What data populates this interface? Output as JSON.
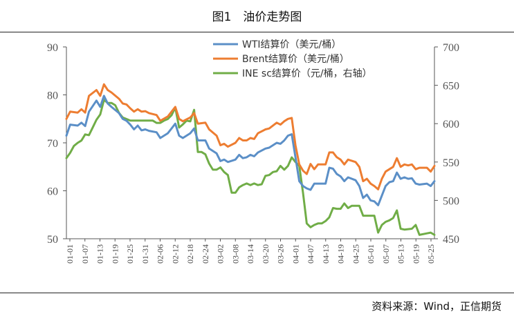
{
  "header": {
    "title": "图1　油价走势图"
  },
  "footer": {
    "source": "资料来源：Wind，正信期货"
  },
  "chart_data": {
    "type": "line",
    "title": "图1　油价走势图",
    "grid": false,
    "legend_position": "top-right",
    "colors": {
      "wti": "#5b8fc7",
      "brent": "#ed7d31",
      "ine": "#70ad47"
    },
    "y_left": {
      "min": 50,
      "max": 90,
      "ticks": [
        50,
        60,
        70,
        80,
        90
      ]
    },
    "y_right": {
      "min": 450,
      "max": 700,
      "ticks": [
        450,
        500,
        550,
        600,
        650,
        700
      ]
    },
    "x_tick_labels": [
      "01-01",
      "01-07",
      "01-13",
      "01-19",
      "01-25",
      "01-31",
      "02-06",
      "02-12",
      "02-18",
      "02-24",
      "03-02",
      "03-08",
      "03-14",
      "03-20",
      "03-26",
      "04-01",
      "04-07",
      "04-13",
      "04-19",
      "04-25",
      "05-01",
      "05-07",
      "05-13",
      "05-19",
      "05-25"
    ],
    "series": [
      {
        "name": "WTI结算价（美元/桶）",
        "axis": "left",
        "color": "#5b8fc7",
        "points": [
          [
            0,
            71.5
          ],
          [
            1,
            73.8
          ],
          [
            3,
            73.6
          ],
          [
            4,
            74.2
          ],
          [
            5,
            73.5
          ],
          [
            6,
            76.5
          ],
          [
            8,
            78.8
          ],
          [
            9,
            77.5
          ],
          [
            10,
            79.8
          ],
          [
            11,
            78.2
          ],
          [
            12,
            77.5
          ],
          [
            14,
            76.2
          ],
          [
            15,
            75.0
          ],
          [
            16,
            74.6
          ],
          [
            17,
            73.8
          ],
          [
            18,
            72.8
          ],
          [
            19,
            73.6
          ],
          [
            20,
            72.6
          ],
          [
            21,
            72.8
          ],
          [
            22,
            72.5
          ],
          [
            24,
            72.2
          ],
          [
            25,
            71.0
          ],
          [
            27,
            72.0
          ],
          [
            28,
            73.0
          ],
          [
            29,
            74.0
          ],
          [
            30,
            71.5
          ],
          [
            31,
            71.0
          ],
          [
            33,
            72.0
          ],
          [
            34,
            73.0
          ],
          [
            35,
            70.5
          ],
          [
            37,
            70.5
          ],
          [
            38,
            68.8
          ],
          [
            40,
            67.8
          ],
          [
            41,
            66.2
          ],
          [
            42,
            66.5
          ],
          [
            43,
            66.0
          ],
          [
            45,
            66.5
          ],
          [
            46,
            67.5
          ],
          [
            47,
            66.8
          ],
          [
            48,
            67.0
          ],
          [
            49,
            67.5
          ],
          [
            50,
            67.2
          ],
          [
            51,
            68.0
          ],
          [
            53,
            68.8
          ],
          [
            54,
            69.0
          ],
          [
            56,
            70.0
          ],
          [
            57,
            69.8
          ],
          [
            58,
            70.5
          ],
          [
            59,
            71.5
          ],
          [
            60,
            71.8
          ],
          [
            61,
            67.0
          ],
          [
            62,
            62.0
          ],
          [
            63,
            61.0
          ],
          [
            64,
            60.5
          ],
          [
            65,
            60.2
          ],
          [
            66,
            61.5
          ],
          [
            69,
            61.5
          ],
          [
            70,
            64.8
          ],
          [
            71,
            64.6
          ],
          [
            72,
            63.5
          ],
          [
            73,
            63.0
          ],
          [
            74,
            62.0
          ],
          [
            75,
            62.8
          ],
          [
            77,
            62.2
          ],
          [
            78,
            61.0
          ],
          [
            79,
            58.5
          ],
          [
            80,
            59.2
          ],
          [
            81,
            58.0
          ],
          [
            82,
            57.8
          ],
          [
            83,
            57.0
          ],
          [
            84,
            59.0
          ],
          [
            85,
            61.0
          ],
          [
            86,
            61.8
          ],
          [
            87,
            62.0
          ],
          [
            88,
            63.8
          ],
          [
            89,
            62.5
          ],
          [
            90,
            62.8
          ],
          [
            91,
            62.5
          ],
          [
            92,
            62.6
          ],
          [
            93,
            61.5
          ],
          [
            94,
            61.3
          ],
          [
            96,
            61.5
          ],
          [
            97,
            61.0
          ],
          [
            98,
            62.0
          ]
        ]
      },
      {
        "name": "Brent结算价（美元/桶）",
        "axis": "left",
        "color": "#ed7d31",
        "points": [
          [
            0,
            75.0
          ],
          [
            1,
            76.5
          ],
          [
            3,
            76.3
          ],
          [
            4,
            77.0
          ],
          [
            5,
            76.3
          ],
          [
            6,
            79.8
          ],
          [
            8,
            81.0
          ],
          [
            9,
            79.8
          ],
          [
            10,
            82.2
          ],
          [
            11,
            81.0
          ],
          [
            12,
            80.5
          ],
          [
            14,
            79.2
          ],
          [
            15,
            78.2
          ],
          [
            16,
            78.0
          ],
          [
            17,
            77.2
          ],
          [
            18,
            76.5
          ],
          [
            19,
            77.0
          ],
          [
            20,
            76.5
          ],
          [
            21,
            76.6
          ],
          [
            22,
            76.2
          ],
          [
            24,
            75.8
          ],
          [
            25,
            74.6
          ],
          [
            27,
            75.5
          ],
          [
            28,
            76.5
          ],
          [
            29,
            77.5
          ],
          [
            30,
            75.0
          ],
          [
            31,
            74.5
          ],
          [
            33,
            75.3
          ],
          [
            34,
            76.2
          ],
          [
            35,
            74.0
          ],
          [
            37,
            74.2
          ],
          [
            38,
            72.8
          ],
          [
            40,
            71.5
          ],
          [
            41,
            69.5
          ],
          [
            42,
            69.8
          ],
          [
            43,
            69.2
          ],
          [
            45,
            70.0
          ],
          [
            46,
            71.0
          ],
          [
            47,
            70.5
          ],
          [
            48,
            70.5
          ],
          [
            49,
            71.0
          ],
          [
            50,
            70.8
          ],
          [
            51,
            72.0
          ],
          [
            53,
            72.8
          ],
          [
            54,
            73.0
          ],
          [
            56,
            74.2
          ],
          [
            57,
            73.8
          ],
          [
            58,
            74.5
          ],
          [
            59,
            75.0
          ],
          [
            60,
            75.2
          ],
          [
            61,
            69.5
          ],
          [
            62,
            65.5
          ],
          [
            63,
            64.2
          ],
          [
            64,
            63.5
          ],
          [
            65,
            65.6
          ],
          [
            66,
            64.5
          ],
          [
            67,
            65.5
          ],
          [
            69,
            65.5
          ],
          [
            70,
            68.0
          ],
          [
            71,
            68.0
          ],
          [
            72,
            67.0
          ],
          [
            73,
            66.5
          ],
          [
            74,
            65.5
          ],
          [
            75,
            66.5
          ],
          [
            77,
            66.0
          ],
          [
            78,
            65.0
          ],
          [
            79,
            62.0
          ],
          [
            80,
            62.5
          ],
          [
            81,
            61.5
          ],
          [
            82,
            61.0
          ],
          [
            83,
            60.3
          ],
          [
            84,
            62.5
          ],
          [
            85,
            64.0
          ],
          [
            86,
            64.5
          ],
          [
            87,
            65.0
          ],
          [
            88,
            66.8
          ],
          [
            89,
            65.0
          ],
          [
            90,
            65.5
          ],
          [
            91,
            65.3
          ],
          [
            92,
            65.5
          ],
          [
            93,
            64.5
          ],
          [
            94,
            64.8
          ],
          [
            96,
            64.8
          ],
          [
            97,
            64.0
          ],
          [
            98,
            65.2
          ]
        ]
      },
      {
        "name": "INE sc结算价（元/桶，右轴）",
        "axis": "right",
        "color": "#70ad47",
        "points": [
          [
            0,
            555
          ],
          [
            1,
            562
          ],
          [
            2,
            571
          ],
          [
            3,
            575
          ],
          [
            4,
            578
          ],
          [
            5,
            586
          ],
          [
            6,
            585
          ],
          [
            7,
            595
          ],
          [
            8,
            605
          ],
          [
            9,
            612
          ],
          [
            10,
            631
          ],
          [
            11,
            627
          ],
          [
            12,
            627
          ],
          [
            13,
            624
          ],
          [
            14,
            614
          ],
          [
            15,
            608
          ],
          [
            16,
            606
          ],
          [
            17,
            604
          ],
          [
            18,
            604
          ],
          [
            21,
            604
          ],
          [
            23,
            604
          ],
          [
            24,
            601
          ],
          [
            25,
            601
          ],
          [
            26,
            604
          ],
          [
            27,
            606
          ],
          [
            28,
            611
          ],
          [
            29,
            621
          ],
          [
            30,
            595
          ],
          [
            31,
            599
          ],
          [
            32,
            604
          ],
          [
            33,
            603
          ],
          [
            34,
            618
          ],
          [
            35,
            563
          ],
          [
            36,
            563
          ],
          [
            37,
            560
          ],
          [
            38,
            548
          ],
          [
            39,
            540
          ],
          [
            40,
            540
          ],
          [
            41,
            543
          ],
          [
            42,
            537
          ],
          [
            43,
            533
          ],
          [
            44,
            510
          ],
          [
            45,
            510
          ],
          [
            46,
            517
          ],
          [
            47,
            520
          ],
          [
            48,
            522
          ],
          [
            49,
            520
          ],
          [
            50,
            522
          ],
          [
            51,
            520
          ],
          [
            52,
            521
          ],
          [
            53,
            532
          ],
          [
            54,
            533
          ],
          [
            55,
            537
          ],
          [
            56,
            538
          ],
          [
            57,
            545
          ],
          [
            58,
            540
          ],
          [
            59,
            545
          ],
          [
            60,
            556
          ],
          [
            61,
            550
          ],
          [
            62,
            545
          ],
          [
            63,
            510
          ],
          [
            64,
            470
          ],
          [
            65,
            465
          ],
          [
            66,
            468
          ],
          [
            67,
            470
          ],
          [
            68,
            470
          ],
          [
            69,
            473
          ],
          [
            70,
            478
          ],
          [
            71,
            490
          ],
          [
            72,
            489
          ],
          [
            73,
            489
          ],
          [
            74,
            496
          ],
          [
            75,
            490
          ],
          [
            76,
            493
          ],
          [
            78,
            493
          ],
          [
            79,
            480
          ],
          [
            80,
            480
          ],
          [
            82,
            480
          ],
          [
            83,
            458
          ],
          [
            84,
            468
          ],
          [
            85,
            472
          ],
          [
            86,
            474
          ],
          [
            87,
            477
          ],
          [
            88,
            487
          ],
          [
            89,
            463
          ],
          [
            90,
            462
          ],
          [
            92,
            463
          ],
          [
            93,
            468
          ],
          [
            94,
            455
          ],
          [
            96,
            457
          ],
          [
            97,
            458
          ],
          [
            98,
            455
          ]
        ]
      }
    ]
  }
}
